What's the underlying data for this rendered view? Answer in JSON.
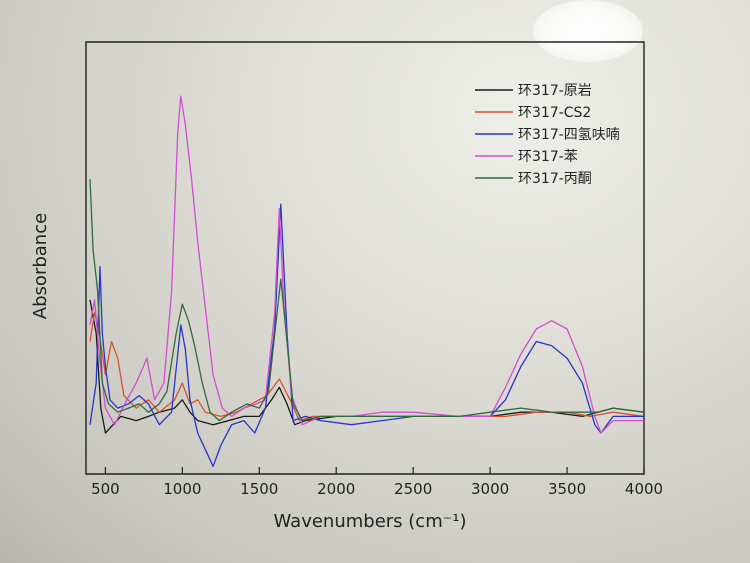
{
  "chart_data": {
    "type": "line",
    "title": "",
    "xlabel": "Wavenumbers (cm⁻¹)",
    "ylabel": "Absorbance",
    "xlim": [
      400,
      4000
    ],
    "ylim": [
      0,
      100
    ],
    "x_ticks": [
      "500",
      "1000",
      "1500",
      "2000",
      "2500",
      "3000",
      "3500",
      "4000"
    ],
    "legend_position": "top-right",
    "grid": false,
    "series": [
      {
        "name": "环317-原岩",
        "color": "#1a1a1a",
        "points": [
          [
            400,
            38
          ],
          [
            440,
            30
          ],
          [
            470,
            12
          ],
          [
            500,
            6
          ],
          [
            550,
            8
          ],
          [
            600,
            10
          ],
          [
            700,
            9
          ],
          [
            780,
            10
          ],
          [
            850,
            11
          ],
          [
            950,
            12
          ],
          [
            1000,
            14
          ],
          [
            1050,
            11
          ],
          [
            1100,
            9
          ],
          [
            1200,
            8
          ],
          [
            1300,
            9
          ],
          [
            1400,
            10
          ],
          [
            1500,
            10
          ],
          [
            1580,
            14
          ],
          [
            1630,
            17
          ],
          [
            1680,
            13
          ],
          [
            1730,
            8
          ],
          [
            1800,
            9
          ],
          [
            2000,
            10
          ],
          [
            2200,
            10
          ],
          [
            2500,
            10
          ],
          [
            2800,
            10
          ],
          [
            3000,
            10
          ],
          [
            3200,
            11
          ],
          [
            3400,
            11
          ],
          [
            3600,
            10
          ],
          [
            3700,
            11
          ],
          [
            3800,
            12
          ],
          [
            4000,
            11
          ]
        ]
      },
      {
        "name": "环317-CS2",
        "color": "#d9532c",
        "points": [
          [
            400,
            28
          ],
          [
            430,
            35
          ],
          [
            460,
            30
          ],
          [
            500,
            20
          ],
          [
            540,
            28
          ],
          [
            580,
            24
          ],
          [
            620,
            15
          ],
          [
            700,
            12
          ],
          [
            780,
            14
          ],
          [
            850,
            11
          ],
          [
            950,
            14
          ],
          [
            1000,
            18
          ],
          [
            1050,
            13
          ],
          [
            1100,
            14
          ],
          [
            1150,
            11
          ],
          [
            1250,
            10
          ],
          [
            1350,
            11
          ],
          [
            1450,
            13
          ],
          [
            1550,
            15
          ],
          [
            1630,
            19
          ],
          [
            1700,
            14
          ],
          [
            1760,
            9
          ],
          [
            1850,
            10
          ],
          [
            2000,
            10
          ],
          [
            2300,
            10
          ],
          [
            2600,
            10
          ],
          [
            2900,
            10
          ],
          [
            3100,
            10
          ],
          [
            3300,
            11
          ],
          [
            3500,
            11
          ],
          [
            3650,
            10
          ],
          [
            3800,
            11
          ],
          [
            4000,
            10
          ]
        ]
      },
      {
        "name": "环317-四氢呋喃",
        "color": "#2437c8",
        "points": [
          [
            400,
            8
          ],
          [
            440,
            18
          ],
          [
            465,
            46
          ],
          [
            480,
            30
          ],
          [
            500,
            22
          ],
          [
            530,
            14
          ],
          [
            580,
            12
          ],
          [
            650,
            13
          ],
          [
            720,
            15
          ],
          [
            780,
            13
          ],
          [
            850,
            8
          ],
          [
            930,
            11
          ],
          [
            990,
            32
          ],
          [
            1020,
            26
          ],
          [
            1050,
            14
          ],
          [
            1100,
            6
          ],
          [
            1150,
            2
          ],
          [
            1200,
            -2
          ],
          [
            1250,
            3
          ],
          [
            1320,
            8
          ],
          [
            1400,
            9
          ],
          [
            1470,
            6
          ],
          [
            1540,
            12
          ],
          [
            1600,
            31
          ],
          [
            1640,
            61
          ],
          [
            1680,
            30
          ],
          [
            1720,
            9
          ],
          [
            1800,
            10
          ],
          [
            1900,
            9
          ],
          [
            2100,
            8
          ],
          [
            2300,
            9
          ],
          [
            2500,
            10
          ],
          [
            2700,
            10
          ],
          [
            2900,
            10
          ],
          [
            3000,
            10
          ],
          [
            3100,
            14
          ],
          [
            3200,
            22
          ],
          [
            3300,
            28
          ],
          [
            3400,
            27
          ],
          [
            3500,
            24
          ],
          [
            3600,
            18
          ],
          [
            3680,
            8
          ],
          [
            3720,
            6
          ],
          [
            3800,
            10
          ],
          [
            4000,
            10
          ]
        ]
      },
      {
        "name": "环317-苯",
        "color": "#d14fd1",
        "points": [
          [
            400,
            32
          ],
          [
            430,
            38
          ],
          [
            460,
            25
          ],
          [
            500,
            12
          ],
          [
            560,
            8
          ],
          [
            640,
            14
          ],
          [
            700,
            18
          ],
          [
            770,
            24
          ],
          [
            820,
            14
          ],
          [
            880,
            18
          ],
          [
            930,
            40
          ],
          [
            970,
            78
          ],
          [
            990,
            87
          ],
          [
            1020,
            80
          ],
          [
            1060,
            67
          ],
          [
            1100,
            52
          ],
          [
            1150,
            36
          ],
          [
            1200,
            20
          ],
          [
            1260,
            12
          ],
          [
            1320,
            10
          ],
          [
            1400,
            12
          ],
          [
            1480,
            13
          ],
          [
            1540,
            14
          ],
          [
            1600,
            35
          ],
          [
            1630,
            60
          ],
          [
            1660,
            37
          ],
          [
            1710,
            15
          ],
          [
            1780,
            8
          ],
          [
            1900,
            10
          ],
          [
            2100,
            10
          ],
          [
            2300,
            11
          ],
          [
            2500,
            11
          ],
          [
            2800,
            10
          ],
          [
            3000,
            10
          ],
          [
            3100,
            17
          ],
          [
            3200,
            25
          ],
          [
            3300,
            31
          ],
          [
            3400,
            33
          ],
          [
            3500,
            31
          ],
          [
            3600,
            22
          ],
          [
            3680,
            10
          ],
          [
            3720,
            6
          ],
          [
            3800,
            9
          ],
          [
            4000,
            9
          ]
        ]
      },
      {
        "name": "环317-丙酮",
        "color": "#2f6b3c",
        "points": [
          [
            400,
            67
          ],
          [
            420,
            50
          ],
          [
            450,
            40
          ],
          [
            480,
            18
          ],
          [
            520,
            13
          ],
          [
            580,
            11
          ],
          [
            650,
            12
          ],
          [
            720,
            13
          ],
          [
            780,
            11
          ],
          [
            850,
            13
          ],
          [
            900,
            16
          ],
          [
            960,
            30
          ],
          [
            1000,
            37
          ],
          [
            1040,
            33
          ],
          [
            1080,
            27
          ],
          [
            1130,
            18
          ],
          [
            1180,
            11
          ],
          [
            1240,
            9
          ],
          [
            1320,
            11
          ],
          [
            1420,
            13
          ],
          [
            1500,
            12
          ],
          [
            1560,
            16
          ],
          [
            1610,
            33
          ],
          [
            1640,
            43
          ],
          [
            1670,
            32
          ],
          [
            1720,
            13
          ],
          [
            1780,
            9
          ],
          [
            1900,
            10
          ],
          [
            2100,
            10
          ],
          [
            2300,
            10
          ],
          [
            2500,
            10
          ],
          [
            2800,
            10
          ],
          [
            3000,
            11
          ],
          [
            3200,
            12
          ],
          [
            3400,
            11
          ],
          [
            3600,
            11
          ],
          [
            3700,
            11
          ],
          [
            3800,
            12
          ],
          [
            4000,
            11
          ]
        ]
      }
    ]
  }
}
